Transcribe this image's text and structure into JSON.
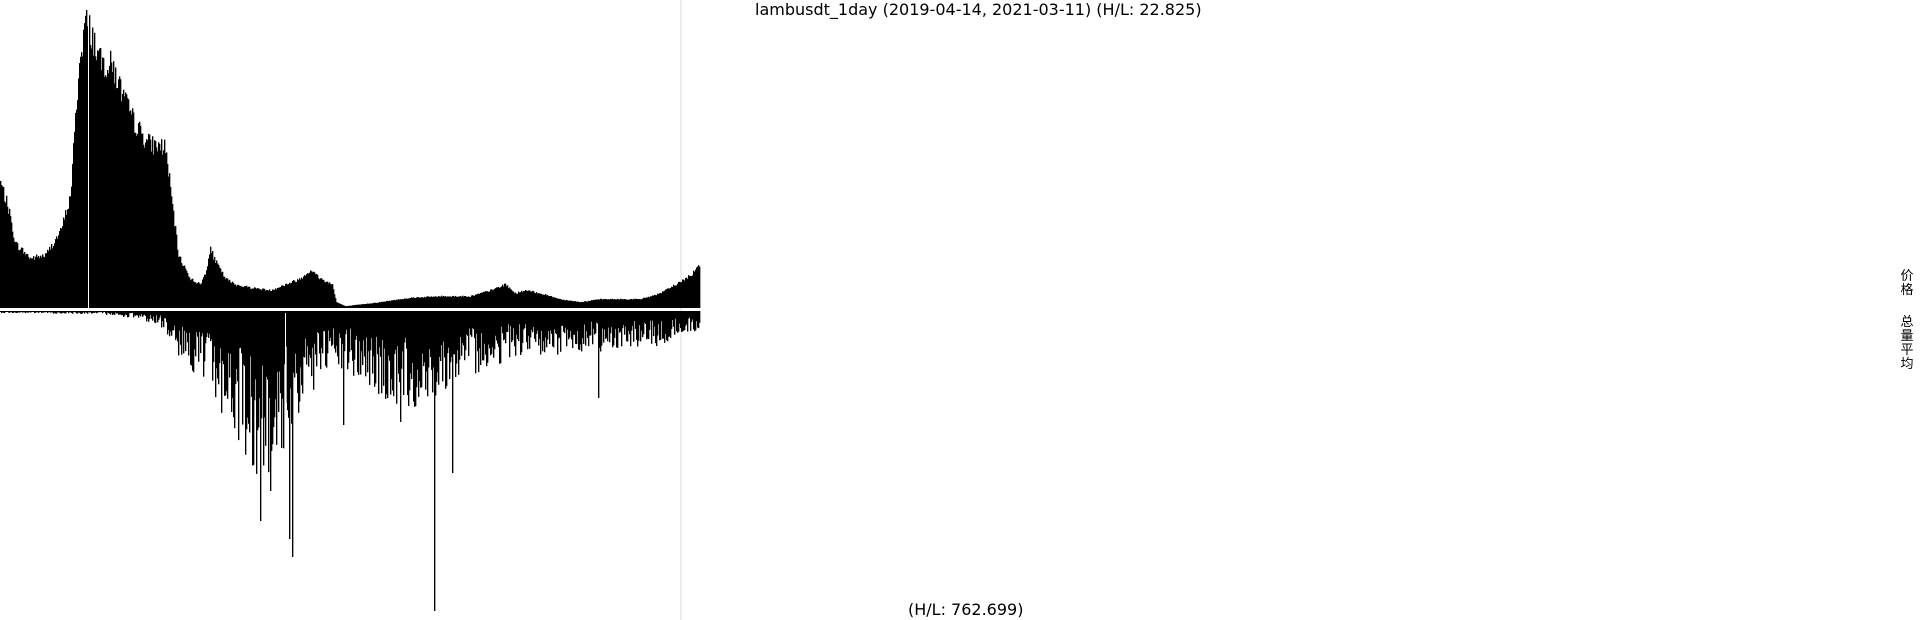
{
  "title": "lambusdt_1day (2019-04-14, 2021-03-11) (H/L: 22.825)",
  "volume_label": "(H/L: 762.699)",
  "legend": [
    "价格",
    "总量平均"
  ],
  "colors": {
    "bars": "#000000",
    "background": "#ffffff",
    "divider": "#d9d9d9",
    "marker": "#ffffff"
  },
  "chart_data": [
    {
      "type": "bar",
      "name": "price",
      "x_start": "2019-04-14",
      "x_end": "2021-03-11",
      "high_low_ratio": 22.825,
      "grid": false,
      "anchors": [
        [
          0,
          0.43
        ],
        [
          8,
          0.34
        ],
        [
          15,
          0.22
        ],
        [
          30,
          0.17
        ],
        [
          45,
          0.18
        ],
        [
          60,
          0.26
        ],
        [
          70,
          0.38
        ],
        [
          78,
          0.8
        ],
        [
          85,
          0.99
        ],
        [
          92,
          0.93
        ],
        [
          100,
          0.84
        ],
        [
          112,
          0.83
        ],
        [
          120,
          0.75
        ],
        [
          130,
          0.66
        ],
        [
          140,
          0.6
        ],
        [
          150,
          0.56
        ],
        [
          165,
          0.55
        ],
        [
          172,
          0.35
        ],
        [
          178,
          0.18
        ],
        [
          190,
          0.1
        ],
        [
          200,
          0.08
        ],
        [
          205,
          0.12
        ],
        [
          210,
          0.2
        ],
        [
          215,
          0.16
        ],
        [
          225,
          0.1
        ],
        [
          235,
          0.08
        ],
        [
          250,
          0.07
        ],
        [
          270,
          0.06
        ],
        [
          285,
          0.08
        ],
        [
          300,
          0.1
        ],
        [
          310,
          0.13
        ],
        [
          320,
          0.1
        ],
        [
          332,
          0.08
        ],
        [
          336,
          0.02
        ],
        [
          345,
          0.006
        ],
        [
          380,
          0.02
        ],
        [
          410,
          0.035
        ],
        [
          440,
          0.04
        ],
        [
          470,
          0.04
        ],
        [
          490,
          0.06
        ],
        [
          505,
          0.08
        ],
        [
          515,
          0.05
        ],
        [
          525,
          0.06
        ],
        [
          540,
          0.05
        ],
        [
          560,
          0.03
        ],
        [
          580,
          0.02
        ],
        [
          600,
          0.03
        ],
        [
          620,
          0.03
        ],
        [
          640,
          0.03
        ],
        [
          660,
          0.05
        ],
        [
          680,
          0.09
        ],
        [
          690,
          0.11
        ],
        [
          699,
          0.15
        ]
      ]
    },
    {
      "type": "bar",
      "name": "volume",
      "x_start": "2019-04-14",
      "x_end": "2021-03-11",
      "high_low_ratio": 762.699,
      "grid": false,
      "anchors": [
        [
          0,
          0.005
        ],
        [
          100,
          0.008
        ],
        [
          140,
          0.02
        ],
        [
          160,
          0.04
        ],
        [
          175,
          0.08
        ],
        [
          180,
          0.13
        ],
        [
          195,
          0.16
        ],
        [
          210,
          0.2
        ],
        [
          230,
          0.3
        ],
        [
          250,
          0.38
        ],
        [
          262,
          0.48
        ],
        [
          275,
          0.42
        ],
        [
          290,
          0.3
        ],
        [
          320,
          0.17
        ],
        [
          340,
          0.15
        ],
        [
          360,
          0.18
        ],
        [
          380,
          0.22
        ],
        [
          400,
          0.25
        ],
        [
          420,
          0.24
        ],
        [
          440,
          0.2
        ],
        [
          460,
          0.17
        ],
        [
          480,
          0.15
        ],
        [
          500,
          0.13
        ],
        [
          520,
          0.11
        ],
        [
          540,
          0.12
        ],
        [
          560,
          0.11
        ],
        [
          580,
          0.1
        ],
        [
          600,
          0.1
        ],
        [
          620,
          0.09
        ],
        [
          640,
          0.09
        ],
        [
          660,
          0.09
        ],
        [
          680,
          0.06
        ],
        [
          699,
          0.05
        ]
      ],
      "spikes": [
        [
          260,
          0.7
        ],
        [
          270,
          0.6
        ],
        [
          289,
          0.76
        ],
        [
          292,
          0.82
        ],
        [
          434,
          1.0
        ],
        [
          452,
          0.54
        ],
        [
          343,
          0.38
        ],
        [
          400,
          0.37
        ],
        [
          598,
          0.29
        ]
      ]
    }
  ]
}
